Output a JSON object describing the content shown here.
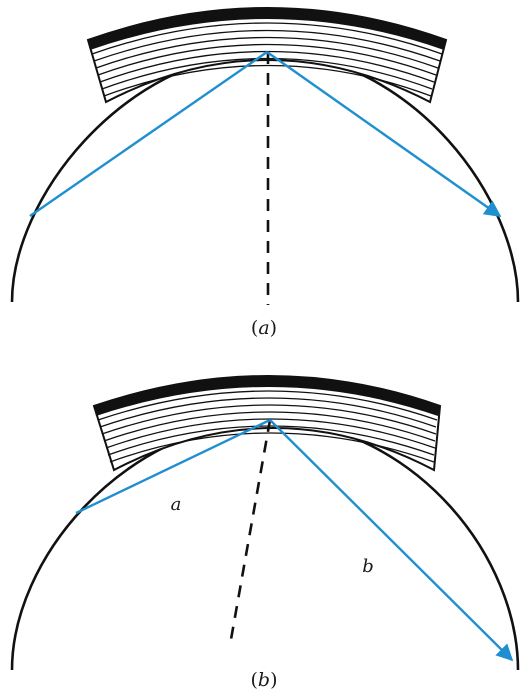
{
  "colors": {
    "ray": "#1f8fd0",
    "outline": "#111111",
    "background": "#ffffff"
  },
  "panel_a": {
    "caption": "(a)"
  },
  "panel_b": {
    "caption": "(b)",
    "ray_label_incident": "a",
    "ray_label_reflected": "b"
  }
}
